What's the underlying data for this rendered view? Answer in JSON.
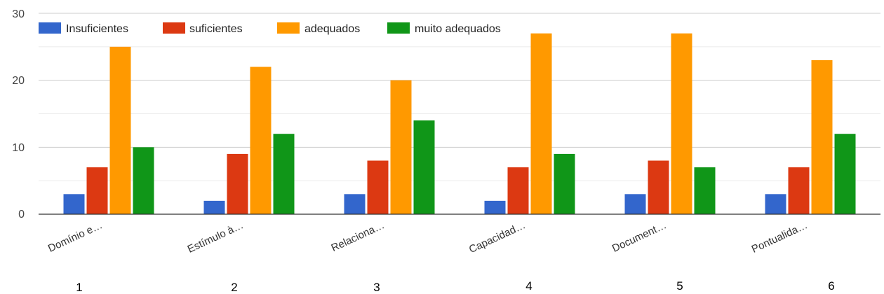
{
  "chart_data": {
    "type": "bar",
    "categories": [
      "Domínio e…",
      "Estímulo à…",
      "Relaciona…",
      "Capacidad…",
      "Document…",
      "Pontualida…"
    ],
    "category_numbers": [
      "1",
      "2",
      "3",
      "4",
      "5",
      "6"
    ],
    "series": [
      {
        "name": "Insuficientes",
        "color": "#3366cc",
        "values": [
          3,
          2,
          3,
          2,
          3,
          3
        ]
      },
      {
        "name": "suficientes",
        "color": "#dc3912",
        "values": [
          7,
          9,
          8,
          7,
          8,
          7
        ]
      },
      {
        "name": "adequados",
        "color": "#ff9900",
        "values": [
          25,
          22,
          20,
          27,
          27,
          23
        ]
      },
      {
        "name": "muito adequados",
        "color": "#109618",
        "values": [
          10,
          12,
          14,
          9,
          7,
          12
        ]
      }
    ],
    "y_ticks": [
      "0",
      "10",
      "20",
      "30"
    ],
    "ylim": [
      0,
      30
    ],
    "grid": true,
    "legend_position": "top-left",
    "title": "",
    "xlabel": "",
    "ylabel": ""
  }
}
